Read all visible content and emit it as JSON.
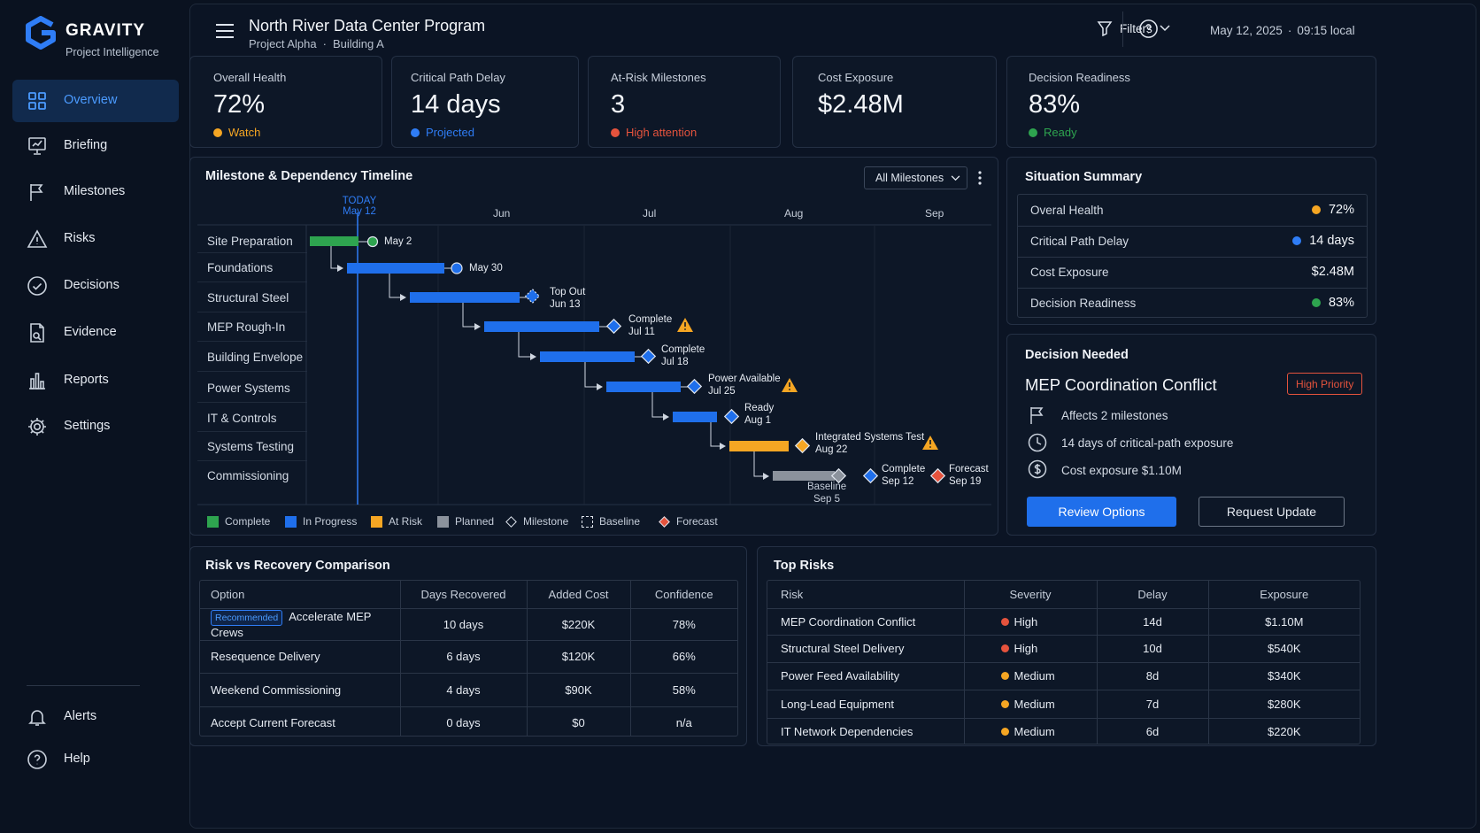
{
  "app": {
    "name": "GRAVITY",
    "subtitle": "Project Intelligence"
  },
  "sidebar": {
    "items": [
      {
        "label": "Overview",
        "icon": "grid-icon",
        "active": true
      },
      {
        "label": "Briefing",
        "icon": "presentation-icon"
      },
      {
        "label": "Milestones",
        "icon": "flag-icon"
      },
      {
        "label": "Risks",
        "icon": "warning-icon"
      },
      {
        "label": "Decisions",
        "icon": "check-circle-icon"
      },
      {
        "label": "Evidence",
        "icon": "document-icon"
      },
      {
        "label": "Reports",
        "icon": "bar-chart-icon"
      },
      {
        "label": "Settings",
        "icon": "gear-icon"
      }
    ],
    "bottom_items": [
      {
        "label": "Alerts",
        "icon": "bell-icon"
      },
      {
        "label": "Help",
        "icon": "help-icon"
      }
    ]
  },
  "header": {
    "title": "North River Data Center Program",
    "project": "Project Alpha",
    "separator": "·",
    "building": "Building A",
    "filters_label": "Filters",
    "date": "May 12, 2025",
    "time": "09:15 local"
  },
  "kpis": [
    {
      "label": "Overall Health",
      "value": "72%",
      "status": "Watch",
      "status_color": "#f5a623"
    },
    {
      "label": "Critical Path Delay",
      "value": "14 days",
      "status": "Projected",
      "status_color": "#2f7df6"
    },
    {
      "label": "At-Risk Milestones",
      "value": "3",
      "status": "High attention",
      "status_color": "#e5533d"
    },
    {
      "label": "Cost Exposure",
      "value": "$2.48M",
      "status": "",
      "status_color": ""
    },
    {
      "label": "Decision Readiness",
      "value": "83%",
      "status": "Ready",
      "status_color": "#2ea44f"
    }
  ],
  "timeline": {
    "title": "Milestone & Dependency Timeline",
    "filter": "All Milestones",
    "today_label": "TODAY",
    "today_date": "May 12",
    "months": [
      "Jun",
      "Jul",
      "Aug",
      "Sep"
    ],
    "rows": [
      "Site Preparation",
      "Foundations",
      "Structural Steel",
      "MEP Rough-In",
      "Building Envelope",
      "Power Systems",
      "IT & Controls",
      "Systems Testing",
      "Commissioning"
    ],
    "milestones": [
      {
        "line1": "May 2",
        "line2": ""
      },
      {
        "line1": "May 30",
        "line2": ""
      },
      {
        "line1": "Top Out",
        "line2": "Jun 13"
      },
      {
        "line1": "Complete",
        "line2": "Jul 11"
      },
      {
        "line1": "Complete",
        "line2": "Jul 18"
      },
      {
        "line1": "Power Available",
        "line2": "Jul 25"
      },
      {
        "line1": "Ready",
        "line2": "Aug 1"
      },
      {
        "line1": "Integrated Systems Test",
        "line2": "Aug 22"
      },
      {
        "line1": "Baseline",
        "line2": "Sep 5"
      },
      {
        "line1": "Complete",
        "line2": "Sep 12"
      },
      {
        "line1": "Forecast",
        "line2": "Sep 19"
      }
    ],
    "legend": [
      "Complete",
      "In Progress",
      "At Risk",
      "Planned",
      "Milestone",
      "Baseline",
      "Forecast"
    ],
    "colors": {
      "complete": "#2ea44f",
      "in_progress": "#1f6feb",
      "at_risk": "#f5a623",
      "planned": "#8b929c",
      "forecast": "#e5533d",
      "today": "#2f7df6"
    }
  },
  "summary": {
    "title": "Situation Summary",
    "rows": [
      {
        "label": "Overal Health",
        "value": "72%",
        "color": "#f5a623"
      },
      {
        "label": "Critical Path Delay",
        "value": "14 days",
        "color": "#2f7df6"
      },
      {
        "label": "Cost Exposure",
        "value": "$2.48M",
        "color": ""
      },
      {
        "label": "Decision Readiness",
        "value": "83%",
        "color": "#2ea44f"
      }
    ]
  },
  "decision": {
    "title": "Decision Needed",
    "name": "MEP Coordination Conflict",
    "priority": "High Priority",
    "facts": [
      {
        "icon": "flag-icon",
        "text": "Affects 2 milestones"
      },
      {
        "icon": "clock-icon",
        "text": "14 days of critical-path exposure"
      },
      {
        "icon": "dollar-icon",
        "text": "Cost exposure $1.10M"
      }
    ],
    "primary_button": "Review Options",
    "secondary_button": "Request Update"
  },
  "comparison": {
    "title": "Risk vs Recovery Comparison",
    "headers": [
      "Option",
      "Days Recovered",
      "Added Cost",
      "Confidence"
    ],
    "recommended_badge": "Recommended",
    "rows": [
      [
        "Accelerate MEP Crews",
        "10 days",
        "$220K",
        "78%"
      ],
      [
        "Resequence Delivery",
        "6 days",
        "$120K",
        "66%"
      ],
      [
        "Weekend Commissioning",
        "4 days",
        "$90K",
        "58%"
      ],
      [
        "Accept Current Forecast",
        "0 days",
        "$0",
        "n/a"
      ]
    ]
  },
  "top_risks": {
    "title": "Top Risks",
    "headers": [
      "Risk",
      "Severity",
      "Delay",
      "Exposure"
    ],
    "rows": [
      {
        "risk": "MEP Coordination Conflict",
        "severity": "High",
        "color": "#e5533d",
        "delay": "14d",
        "exposure": "$1.10M"
      },
      {
        "risk": "Structural Steel Delivery",
        "severity": "High",
        "color": "#e5533d",
        "delay": "10d",
        "exposure": "$540K"
      },
      {
        "risk": "Power Feed Availability",
        "severity": "Medium",
        "color": "#f5a623",
        "delay": "8d",
        "exposure": "$340K"
      },
      {
        "risk": "Long-Lead Equipment",
        "severity": "Medium",
        "color": "#f5a623",
        "delay": "7d",
        "exposure": "$280K"
      },
      {
        "risk": "IT Network Dependencies",
        "severity": "Medium",
        "color": "#f5a623",
        "delay": "6d",
        "exposure": "$220K"
      }
    ]
  }
}
